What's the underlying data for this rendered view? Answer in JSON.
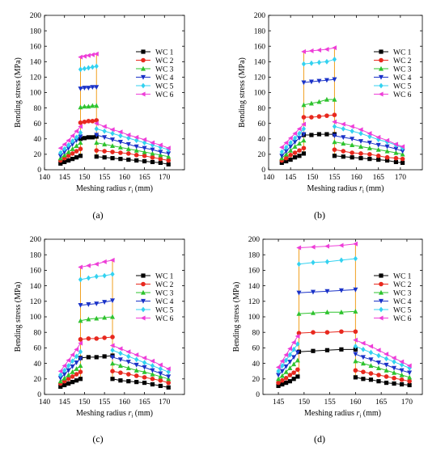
{
  "colors": {
    "WC 1": "#000000",
    "WC 2": "#e8281e",
    "WC 3": "#2ec32e",
    "WC 4": "#1a32c8",
    "WC 5": "#33d2f0",
    "WC 6": "#ee3ed8",
    "connector": "#f0a020"
  },
  "chart_data": [
    {
      "type": "line",
      "panel_label": "(a)",
      "xlabel": "Meshing radius r_i (mm)",
      "ylabel": "Bending stress (MPa)",
      "xlim": [
        140,
        175
      ],
      "ylim": [
        0,
        200
      ],
      "xticks": [
        140,
        145,
        150,
        155,
        160,
        165,
        170
      ],
      "yticks": [
        0,
        20,
        40,
        60,
        80,
        100,
        120,
        140,
        160,
        180,
        200
      ],
      "legend_position": "right",
      "left_x": [
        144,
        145,
        146,
        147,
        148,
        149
      ],
      "top_x": [
        149,
        150,
        151,
        152,
        153
      ],
      "right_x": [
        153,
        155,
        157,
        159,
        161,
        163,
        165,
        167,
        169,
        171
      ],
      "series": [
        {
          "name": "WC 1",
          "marker": "square",
          "left": [
            8,
            10,
            12,
            14,
            16,
            18
          ],
          "top": [
            40,
            41,
            42,
            42,
            43
          ],
          "right": [
            17,
            16,
            15,
            14,
            13,
            12,
            11,
            10,
            9,
            7
          ]
        },
        {
          "name": "WC 2",
          "marker": "circle",
          "left": [
            12,
            15,
            18,
            21,
            24,
            27
          ],
          "top": [
            61,
            62,
            63,
            63,
            64
          ],
          "right": [
            25,
            24,
            23,
            22,
            21,
            19,
            18,
            16,
            14,
            12
          ]
        },
        {
          "name": "WC 3",
          "marker": "triangle-up",
          "left": [
            15,
            19,
            23,
            27,
            31,
            35
          ],
          "top": [
            81,
            82,
            82,
            83,
            83
          ],
          "right": [
            35,
            33,
            31,
            29,
            27,
            25,
            23,
            21,
            19,
            17
          ]
        },
        {
          "name": "WC 4",
          "marker": "triangle-down",
          "left": [
            18,
            23,
            28,
            33,
            38,
            43
          ],
          "top": [
            105,
            106,
            106,
            107,
            107
          ],
          "right": [
            45,
            42,
            39,
            36,
            33,
            30,
            28,
            26,
            23,
            21
          ]
        },
        {
          "name": "WC 5",
          "marker": "diamond",
          "left": [
            22,
            27,
            32,
            37,
            42,
            48
          ],
          "top": [
            130,
            131,
            132,
            133,
            134
          ],
          "right": [
            53,
            50,
            47,
            44,
            41,
            38,
            35,
            32,
            29,
            26
          ]
        },
        {
          "name": "WC 6",
          "marker": "triangle-left",
          "left": [
            28,
            33,
            38,
            44,
            50,
            56
          ],
          "top": [
            146,
            147,
            148,
            149,
            150
          ],
          "right": [
            60,
            56,
            52,
            49,
            45,
            42,
            39,
            35,
            32,
            28
          ]
        }
      ]
    },
    {
      "type": "line",
      "panel_label": "(b)",
      "xlabel": "Meshing radius r_i (mm)",
      "ylabel": "Bending stress (MPa)",
      "xlim": [
        140,
        175
      ],
      "ylim": [
        0,
        200
      ],
      "xticks": [
        140,
        145,
        150,
        155,
        160,
        165,
        170
      ],
      "yticks": [
        0,
        20,
        40,
        60,
        80,
        100,
        120,
        140,
        160,
        180,
        200
      ],
      "legend_position": "right",
      "left_x": [
        143,
        144,
        145,
        146,
        147,
        148
      ],
      "top_x": [
        148,
        149.75,
        151.5,
        153.25,
        155
      ],
      "right_x": [
        155,
        157,
        159,
        161,
        163,
        165,
        167,
        169,
        170.5
      ],
      "series": [
        {
          "name": "WC 1",
          "marker": "square",
          "left": [
            9,
            11,
            13,
            16,
            18,
            21
          ],
          "top": [
            45,
            45,
            46,
            46,
            46
          ],
          "right": [
            18,
            17,
            16,
            15,
            14,
            13,
            12,
            10,
            9
          ]
        },
        {
          "name": "WC 2",
          "marker": "circle",
          "left": [
            12,
            15,
            19,
            22,
            25,
            28
          ],
          "top": [
            68,
            68,
            69,
            70,
            71
          ],
          "right": [
            26,
            24,
            22,
            21,
            20,
            18,
            16,
            15,
            14
          ]
        },
        {
          "name": "WC 3",
          "marker": "triangle-up",
          "left": [
            15,
            20,
            25,
            30,
            34,
            38
          ],
          "top": [
            84,
            86,
            88,
            91,
            91
          ],
          "right": [
            36,
            34,
            32,
            30,
            28,
            26,
            24,
            22,
            20
          ]
        },
        {
          "name": "WC 4",
          "marker": "triangle-down",
          "left": [
            18,
            24,
            30,
            36,
            41,
            46
          ],
          "top": [
            113,
            114,
            115,
            116,
            117
          ],
          "right": [
            44,
            42,
            40,
            37,
            35,
            32,
            30,
            27,
            24
          ]
        },
        {
          "name": "WC 5",
          "marker": "diamond",
          "left": [
            23,
            29,
            35,
            41,
            47,
            53
          ],
          "top": [
            137,
            138,
            139,
            140,
            143
          ],
          "right": [
            56,
            53,
            50,
            47,
            43,
            39,
            36,
            32,
            28
          ]
        },
        {
          "name": "WC 6",
          "marker": "triangle-left",
          "left": [
            29,
            35,
            41,
            47,
            53,
            59
          ],
          "top": [
            153,
            154,
            155,
            156,
            158
          ],
          "right": [
            62,
            59,
            56,
            52,
            47,
            42,
            38,
            33,
            30
          ]
        }
      ]
    },
    {
      "type": "line",
      "panel_label": "(c)",
      "xlabel": "Meshing radius r_i (mm)",
      "ylabel": "Bending stress (MPa)",
      "xlim": [
        140,
        175
      ],
      "ylim": [
        0,
        200
      ],
      "xticks": [
        140,
        145,
        150,
        155,
        160,
        165,
        170
      ],
      "yticks": [
        0,
        20,
        40,
        60,
        80,
        100,
        120,
        140,
        160,
        180,
        200
      ],
      "legend_position": "right",
      "left_x": [
        144,
        145,
        146,
        147,
        148,
        149
      ],
      "top_x": [
        149,
        151,
        153,
        155,
        157
      ],
      "right_x": [
        157,
        159,
        161,
        163,
        165,
        167,
        169,
        171
      ],
      "series": [
        {
          "name": "WC 1",
          "marker": "square",
          "left": [
            10,
            12,
            14,
            16,
            18,
            20
          ],
          "top": [
            47,
            48,
            48,
            49,
            50
          ],
          "right": [
            20,
            18,
            17,
            16,
            15,
            13,
            11,
            9
          ]
        },
        {
          "name": "WC 2",
          "marker": "circle",
          "left": [
            14,
            17,
            20,
            23,
            26,
            29
          ],
          "top": [
            71,
            72,
            72,
            73,
            74
          ],
          "right": [
            30,
            28,
            26,
            24,
            22,
            20,
            18,
            15
          ]
        },
        {
          "name": "WC 3",
          "marker": "triangle-up",
          "left": [
            17,
            21,
            25,
            29,
            33,
            37
          ],
          "top": [
            95,
            97,
            98,
            99,
            100
          ],
          "right": [
            40,
            37,
            34,
            31,
            29,
            26,
            23,
            20
          ]
        },
        {
          "name": "WC 4",
          "marker": "triangle-down",
          "left": [
            21,
            26,
            31,
            36,
            41,
            46
          ],
          "top": [
            115,
            116,
            117,
            119,
            121
          ],
          "right": [
            48,
            45,
            42,
            38,
            35,
            31,
            27,
            23
          ]
        },
        {
          "name": "WC 5",
          "marker": "diamond",
          "left": [
            25,
            31,
            37,
            43,
            49,
            55
          ],
          "top": [
            148,
            150,
            152,
            153,
            155
          ],
          "right": [
            57,
            53,
            49,
            45,
            41,
            37,
            33,
            29
          ]
        },
        {
          "name": "WC 6",
          "marker": "triangle-left",
          "left": [
            30,
            37,
            44,
            51,
            58,
            66
          ],
          "top": [
            164,
            166,
            168,
            171,
            173
          ],
          "right": [
            63,
            59,
            55,
            51,
            47,
            43,
            38,
            33
          ]
        }
      ]
    },
    {
      "type": "line",
      "panel_label": "(d)",
      "xlabel": "Meshing radius r_i (mm)",
      "ylabel": "Bending stress (MPa)",
      "xlim": [
        142,
        173
      ],
      "ylim": [
        0,
        200
      ],
      "xticks": [
        145,
        150,
        155,
        160,
        165,
        170
      ],
      "yticks": [
        0,
        20,
        40,
        60,
        80,
        100,
        120,
        140,
        160,
        180,
        200
      ],
      "legend_position": "right",
      "left_x": [
        145,
        145.75,
        146.5,
        147.25,
        148,
        148.75
      ],
      "top_x": [
        149,
        151.75,
        154.5,
        157.25,
        160
      ],
      "right_x": [
        160,
        161.5,
        163,
        164.5,
        166,
        167.5,
        169,
        170.5
      ],
      "series": [
        {
          "name": "WC 1",
          "marker": "square",
          "left": [
            11,
            13,
            15,
            17,
            20,
            23
          ],
          "top": [
            55,
            56,
            57,
            58,
            58
          ],
          "right": [
            22,
            20,
            19,
            17,
            15,
            14,
            13,
            12
          ]
        },
        {
          "name": "WC 2",
          "marker": "circle",
          "left": [
            15,
            18,
            21,
            25,
            28,
            32
          ],
          "top": [
            79,
            80,
            80,
            81,
            81
          ],
          "right": [
            31,
            29,
            27,
            25,
            23,
            21,
            19,
            17
          ]
        },
        {
          "name": "WC 3",
          "marker": "triangle-up",
          "left": [
            20,
            24,
            29,
            34,
            39,
            44
          ],
          "top": [
            104,
            105,
            106,
            106,
            107
          ],
          "right": [
            43,
            40,
            37,
            34,
            31,
            28,
            25,
            22
          ]
        },
        {
          "name": "WC 4",
          "marker": "triangle-down",
          "left": [
            25,
            30,
            36,
            42,
            48,
            54
          ],
          "top": [
            131,
            132,
            133,
            134,
            135
          ],
          "right": [
            52,
            48,
            45,
            41,
            38,
            34,
            31,
            28
          ]
        },
        {
          "name": "WC 5",
          "marker": "diamond",
          "left": [
            30,
            37,
            44,
            51,
            58,
            65
          ],
          "top": [
            168,
            170,
            171,
            173,
            175
          ],
          "right": [
            62,
            58,
            54,
            50,
            46,
            42,
            38,
            34
          ]
        },
        {
          "name": "WC 6",
          "marker": "triangle-left",
          "left": [
            35,
            43,
            51,
            59,
            67,
            75
          ],
          "top": [
            189,
            190,
            191,
            192,
            194
          ],
          "right": [
            70,
            66,
            62,
            57,
            52,
            47,
            42,
            37
          ]
        }
      ]
    }
  ]
}
